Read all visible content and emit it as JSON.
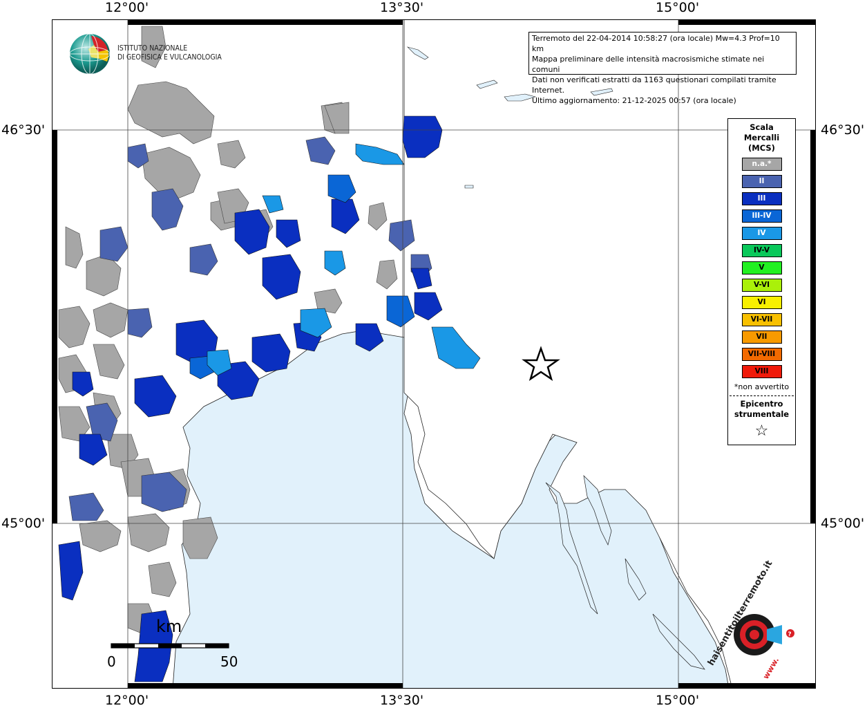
{
  "header": {
    "earthquake_line": "Terremoto del 22-04-2014 10:58:27 (ora locale) Mw=4.3 Prof=10 km",
    "map_line": "Mappa preliminare delle intensità macrosismiche stimate nei comuni",
    "data_line": "Dati non verificati estratti da 1163 questionari compilati tramite Internet.",
    "update_line": "Ultimo aggiornamento: 21-12-2025 00:57 (ora locale)"
  },
  "logo": {
    "line1": "ISTITUTO NAZIONALE",
    "line2": "DI GEOFISICA E VULCANOLOGIA"
  },
  "axes": {
    "top": [
      "12°00'",
      "13°30'",
      "15°00'"
    ],
    "bottom": [
      "12°00'",
      "13°30'",
      "15°00'"
    ],
    "left": [
      "46°30'",
      "45°00'"
    ],
    "right": [
      "46°30'",
      "45°00'"
    ]
  },
  "legend": {
    "title_line1": "Scala",
    "title_line2": "Mercalli",
    "title_line3": "(MCS)",
    "items": [
      {
        "label": "n.a.*",
        "color": "#a6a6a6"
      },
      {
        "label": "II",
        "color": "#4a63b0"
      },
      {
        "label": "III",
        "color": "#0a2fc0"
      },
      {
        "label": "III-IV",
        "color": "#0a66d6"
      },
      {
        "label": "IV",
        "color": "#1a98e6"
      },
      {
        "label": "IV-V",
        "color": "#0ac85a"
      },
      {
        "label": "V",
        "color": "#22f022"
      },
      {
        "label": "V-VI",
        "color": "#aaf00a"
      },
      {
        "label": "VI",
        "color": "#f8f000"
      },
      {
        "label": "VI-VII",
        "color": "#f8c000"
      },
      {
        "label": "VII",
        "color": "#f89a00"
      },
      {
        "label": "VII-VIII",
        "color": "#f26a00"
      },
      {
        "label": "VIII",
        "color": "#f01a0a"
      }
    ],
    "note": "*non avvertito",
    "epicenter_line1": "Epicentro",
    "epicenter_line2": "strumentale",
    "epicenter_icon": "star-outline-icon"
  },
  "scalebar": {
    "unit": "km",
    "min_label": "0",
    "max_label": "50"
  },
  "watermark": {
    "text": "haisentitoilterremoto.it",
    "www": "www."
  },
  "colors": {
    "sea": "#e1f1fb",
    "gray_comune": "#a6a6a6",
    "ii": "#4a63b0",
    "iii": "#0a2fc0",
    "iii_iv": "#0a66d6",
    "iv": "#1a98e6"
  }
}
